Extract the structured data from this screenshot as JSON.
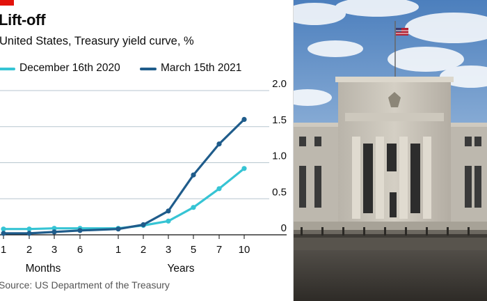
{
  "chart_data": {
    "type": "line",
    "title": "Lift-off",
    "subtitle": "United States, Treasury yield curve, %",
    "source": "Source: US Department of the Treasury",
    "categories": [
      "1",
      "2",
      "3",
      "6",
      "1",
      "2",
      "3",
      "5",
      "7",
      "10"
    ],
    "category_groups": [
      {
        "label": "Months",
        "count": 4
      },
      {
        "label": "Years",
        "count": 6
      }
    ],
    "series": [
      {
        "name": "December 16th 2020",
        "color": "#36c4d4",
        "values": [
          0.08,
          0.08,
          0.09,
          0.09,
          0.09,
          0.13,
          0.19,
          0.38,
          0.64,
          0.92
        ]
      },
      {
        "name": "March 15th 2021",
        "color": "#1f5c8b",
        "values": [
          0.02,
          0.02,
          0.04,
          0.06,
          0.08,
          0.14,
          0.33,
          0.83,
          1.26,
          1.6
        ]
      }
    ],
    "ylim": [
      0,
      2.0
    ],
    "yticks": [
      "0",
      "0.5",
      "1.0",
      "1.5",
      "2.0"
    ],
    "ytick_values": [
      0,
      0.5,
      1.0,
      1.5,
      2.0
    ],
    "grid": true,
    "legend_position": "top-left"
  },
  "colors": {
    "brand_red": "#e3120b",
    "gridline": "#b7c6cf",
    "baseline": "#0c0c0c"
  }
}
